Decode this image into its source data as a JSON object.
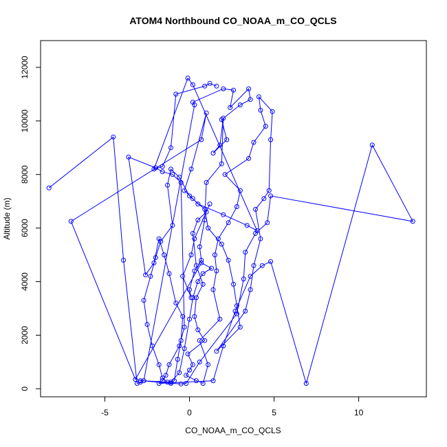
{
  "chart_data": {
    "type": "line",
    "title": "ATOM4 Northbound CO_NOAA_m_CO_QCLS",
    "xlabel": "CO_NOAA_m_CO_QCLS",
    "ylabel": "Altitude (m)",
    "xlim": [
      -8.8,
      14.0
    ],
    "ylim": [
      -300,
      13000
    ],
    "x_ticks": [
      -5,
      0,
      5,
      10
    ],
    "y_ticks": [
      0,
      2000,
      4000,
      6000,
      8000,
      10000,
      12000
    ],
    "series_color": "#0000ff",
    "marker": "open-circle",
    "series": [
      {
        "x": [
          -8.3,
          -4.5,
          -3.9,
          -3.1,
          -2.9,
          -2.7,
          0.3,
          0.2,
          2.0,
          2.6,
          2.4,
          3.5,
          3.6,
          3.0,
          1.9,
          2.2,
          1.4,
          1.8,
          2.0,
          1.9,
          1.0,
          0.9,
          0.6,
          0.7,
          0.3,
          0.0,
          0.1,
          -0.4,
          0.1,
          0.3,
          1.2,
          1.0,
          0.5,
          0.2,
          0.4,
          0.8,
          0.4,
          0.3,
          0.5,
          0.9,
          -0.1,
          0.2,
          0.0,
          -0.2,
          0.4,
          0.8,
          1.1,
          0.6,
          1.8,
          1.4,
          1.6,
          1.5,
          1.7,
          2.3,
          2.8,
          3.0,
          2.1,
          3.5,
          3.8,
          4.5,
          4.2,
          4.1,
          4.9,
          4.8,
          4.7,
          4.4,
          3.9,
          4.2,
          3.8,
          3.6,
          3.3,
          1.6,
          3.0,
          2.8,
          2.6,
          2.3,
          1.9,
          1.1,
          0.9,
          0.0,
          -0.6,
          -1.1,
          -1.3,
          -1.0,
          -1.7,
          -2.0,
          -2.3,
          -2.7,
          -2.5,
          -2.2,
          -1.8,
          -1.6,
          -1.3,
          -1.1,
          -0.9,
          -0.7,
          -0.5,
          -0.4,
          -0.8,
          -1.2,
          -1.5,
          -1.8,
          -2.1,
          -2.6,
          -3.6,
          -2.0,
          -1.6,
          -1.0,
          -0.5,
          -0.3,
          -0.6,
          -1.2,
          -1.4,
          -1.6,
          -1.8,
          1.4,
          2.0,
          2.7,
          3.6,
          4.3,
          4.8,
          6.9,
          10.8,
          13.2,
          4.8,
          4.6,
          3.9,
          3.3,
          3.2,
          2.8,
          0.6,
          -0.2,
          -0.5,
          -2.9,
          -1.1,
          -0.6,
          -0.3,
          0.0,
          0.2,
          0.5,
          0.8,
          1.3,
          0.7,
          -3.2,
          -7.0,
          0.7,
          1.0,
          0.1,
          -0.3,
          0.2,
          0.5,
          2.0,
          3.4,
          4.0,
          0.2,
          -0.1,
          -2.1,
          -1.6,
          -1.1,
          -0.8,
          0.9,
          1.2,
          1.6
        ],
        "y": [
          7500,
          9400,
          4800,
          200,
          250,
          300,
          10600,
          10700,
          11200,
          11150,
          10500,
          11200,
          10800,
          10600,
          10050,
          9300,
          8800,
          9100,
          10100,
          8400,
          7700,
          6300,
          5300,
          4800,
          4400,
          3700,
          3400,
          4200,
          5000,
          5600,
          6900,
          6600,
          6300,
          5800,
          4600,
          3900,
          3400,
          2700,
          2200,
          1800,
          1300,
          900,
          700,
          500,
          300,
          200,
          900,
          1800,
          2600,
          3700,
          4400,
          5000,
          5600,
          6200,
          6800,
          7400,
          8000,
          8600,
          9200,
          9800,
          10400,
          10900,
          10350,
          9300,
          7400,
          7100,
          6700,
          5600,
          4600,
          3700,
          2900,
          1400,
          2300,
          3100,
          3900,
          4800,
          5400,
          6000,
          6700,
          7200,
          7900,
          8200,
          7600,
          6100,
          5500,
          4900,
          4200,
          3300,
          2400,
          1600,
          900,
          400,
          250,
          200,
          300,
          1100,
          1800,
          2700,
          3200,
          4300,
          5000,
          5600,
          4700,
          4250,
          8650,
          8250,
          8100,
          8000,
          7700,
          2300,
          1600,
          900,
          500,
          300,
          200,
          300,
          1600,
          2900,
          4200,
          4600,
          4750,
          200,
          9100,
          6250,
          7200,
          6200,
          5800,
          5100,
          4100,
          2800,
          1000,
          200,
          180,
          300,
          250,
          600,
          1500,
          2600,
          3400,
          4000,
          4300,
          4500,
          4700,
          350,
          6250,
          9300,
          10300,
          8200,
          7400,
          7100,
          6900,
          6500,
          6100,
          5900,
          11350,
          11600,
          8200,
          8300,
          9000,
          11000,
          11300,
          11400,
          11300
        ]
      }
    ]
  }
}
